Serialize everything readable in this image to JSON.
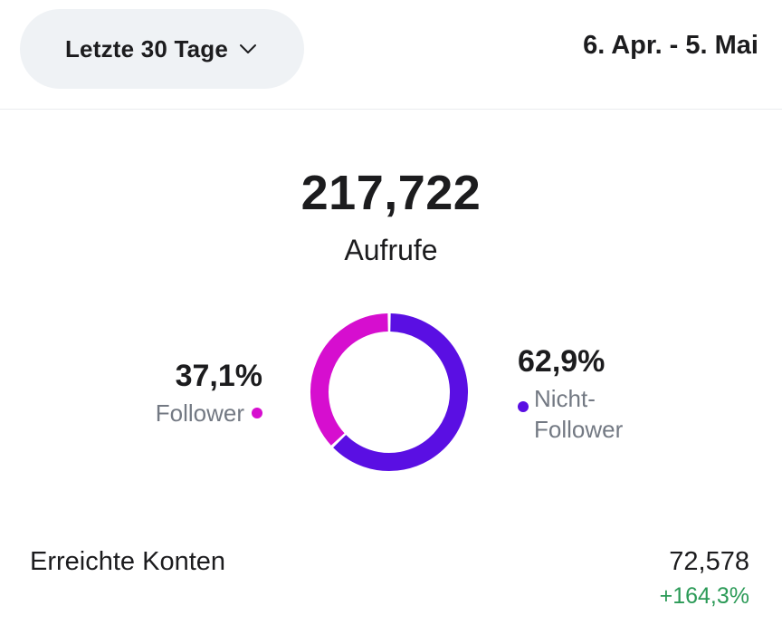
{
  "filter": {
    "range_label": "Letzte 30 Tage",
    "chevron_icon": "chevron-down-icon"
  },
  "date_range": "6. Apr. - 5. Mai",
  "summary": {
    "total_value": "217,722",
    "total_label": "Aufrufe"
  },
  "breakdown": {
    "follower": {
      "percent": "37,1%",
      "label": "Follower",
      "color": "#d60ecf"
    },
    "non_follower": {
      "percent": "62,9%",
      "label_line1": "Nicht-",
      "label_line2": "Follower",
      "color": "#5a0fe3"
    }
  },
  "metrics": {
    "reached_accounts": {
      "label": "Erreichte Konten",
      "value": "72,578",
      "change": "+164,3%",
      "change_color": "#2b9a57"
    }
  },
  "chart_data": {
    "type": "pie",
    "categories": [
      "Follower",
      "Nicht-Follower"
    ],
    "values": [
      37.1,
      62.9
    ],
    "colors": [
      "#d60ecf",
      "#5a0fe3"
    ],
    "title": "",
    "xlabel": "",
    "ylabel": ""
  }
}
